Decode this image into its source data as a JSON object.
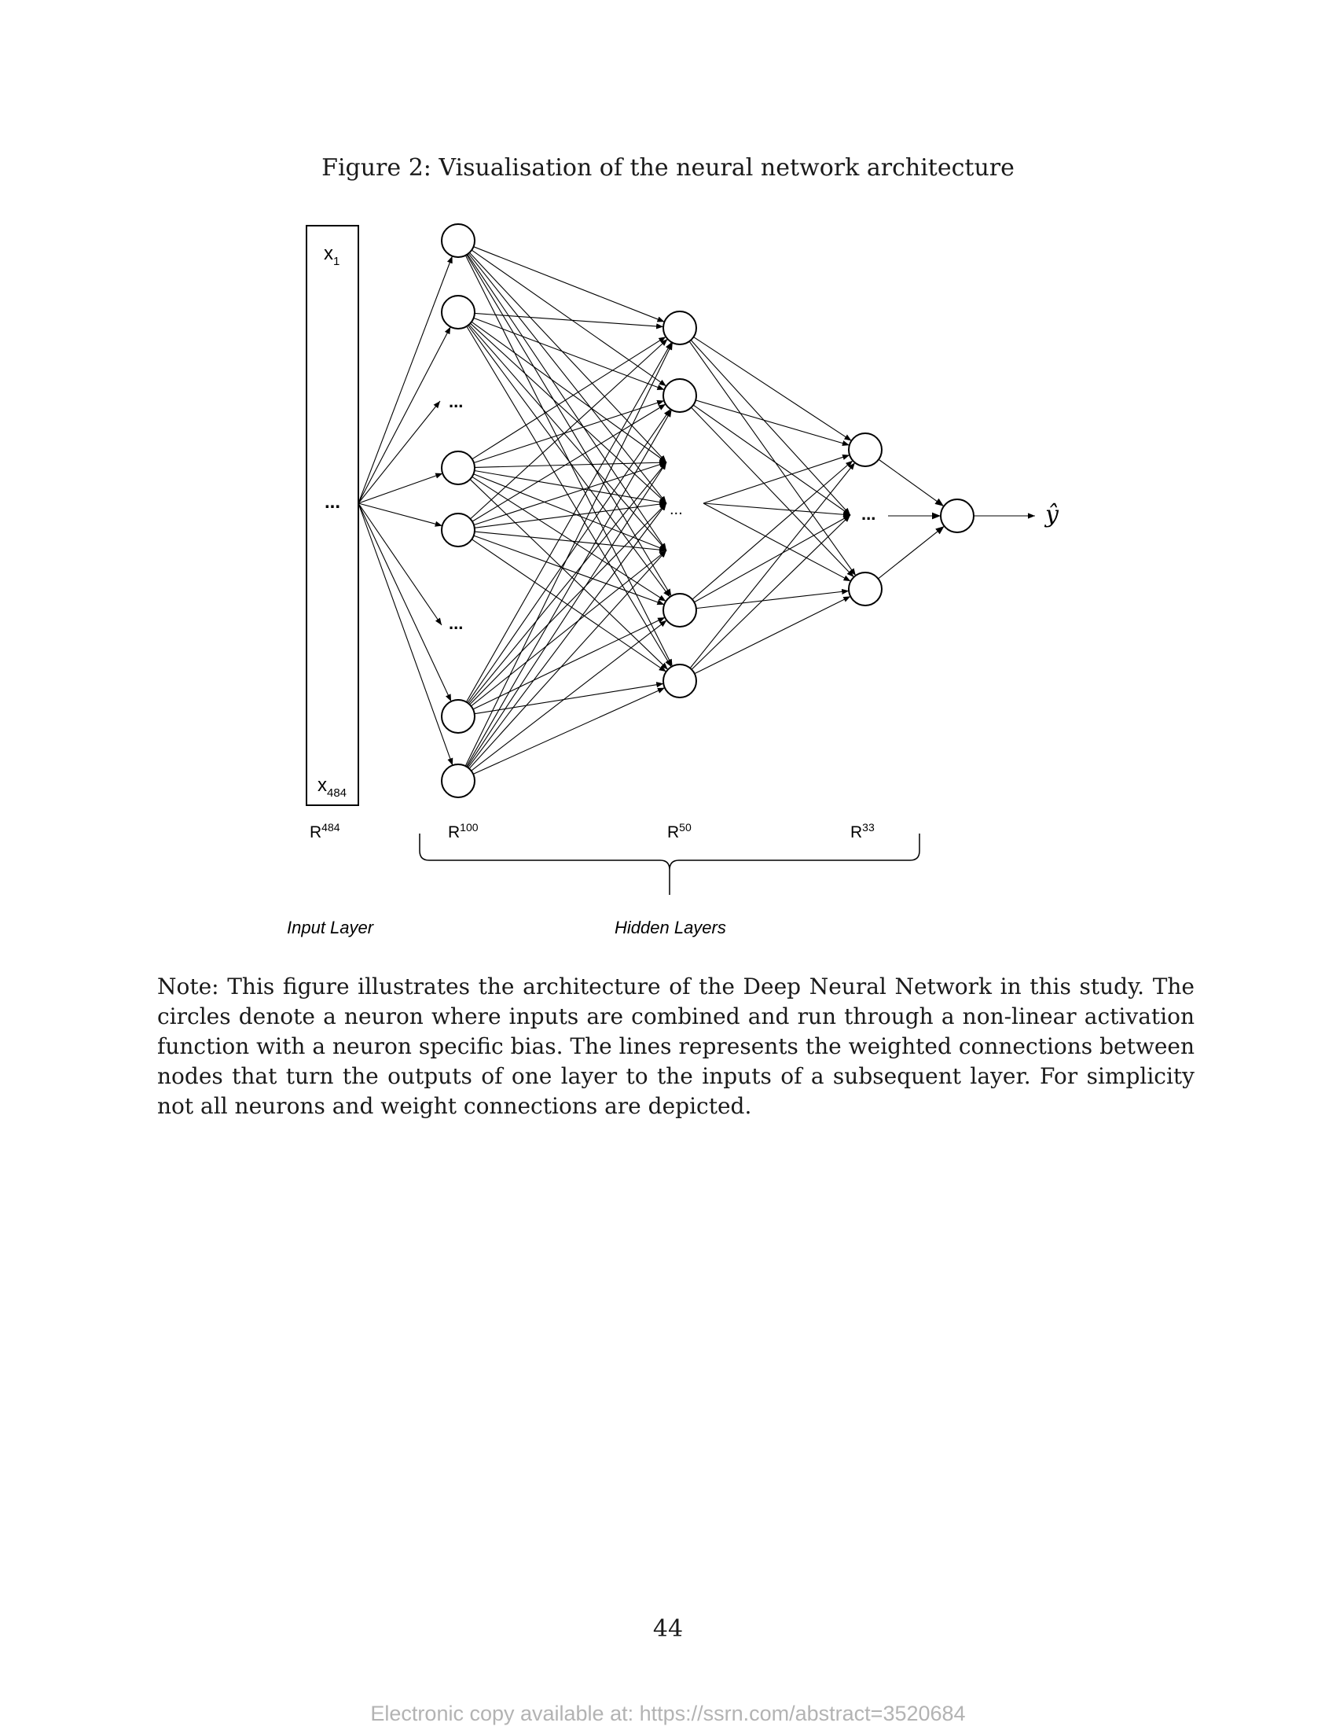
{
  "figure": {
    "caption": "Figure 2: Visualisation of the neural network architecture",
    "input_box": {
      "top_label": "x",
      "top_sub": "1",
      "mid_label": "...",
      "bottom_label": "x",
      "bottom_sub": "484"
    },
    "dims": [
      {
        "base": "R",
        "sup": "484"
      },
      {
        "base": "R",
        "sup": "100"
      },
      {
        "base": "R",
        "sup": "50"
      },
      {
        "base": "R",
        "sup": "33"
      }
    ],
    "ellipsis": "...",
    "output_label": "ŷ",
    "input_layer_label": "Input Layer",
    "hidden_layers_label": "Hidden Layers"
  },
  "note": "Note: This figure illustrates the architecture of the Deep Neural Network in this study. The circles denote a neuron where inputs are combined and run through a non-linear activation function with a neuron specific bias. The lines represents the weighted connections between nodes that turn the outputs of one layer to the inputs of a subsequent layer. For simplicity not all neurons and weight connections are depicted.",
  "page_number": "44",
  "footer": "Electronic copy available at: https://ssrn.com/abstract=3520684"
}
